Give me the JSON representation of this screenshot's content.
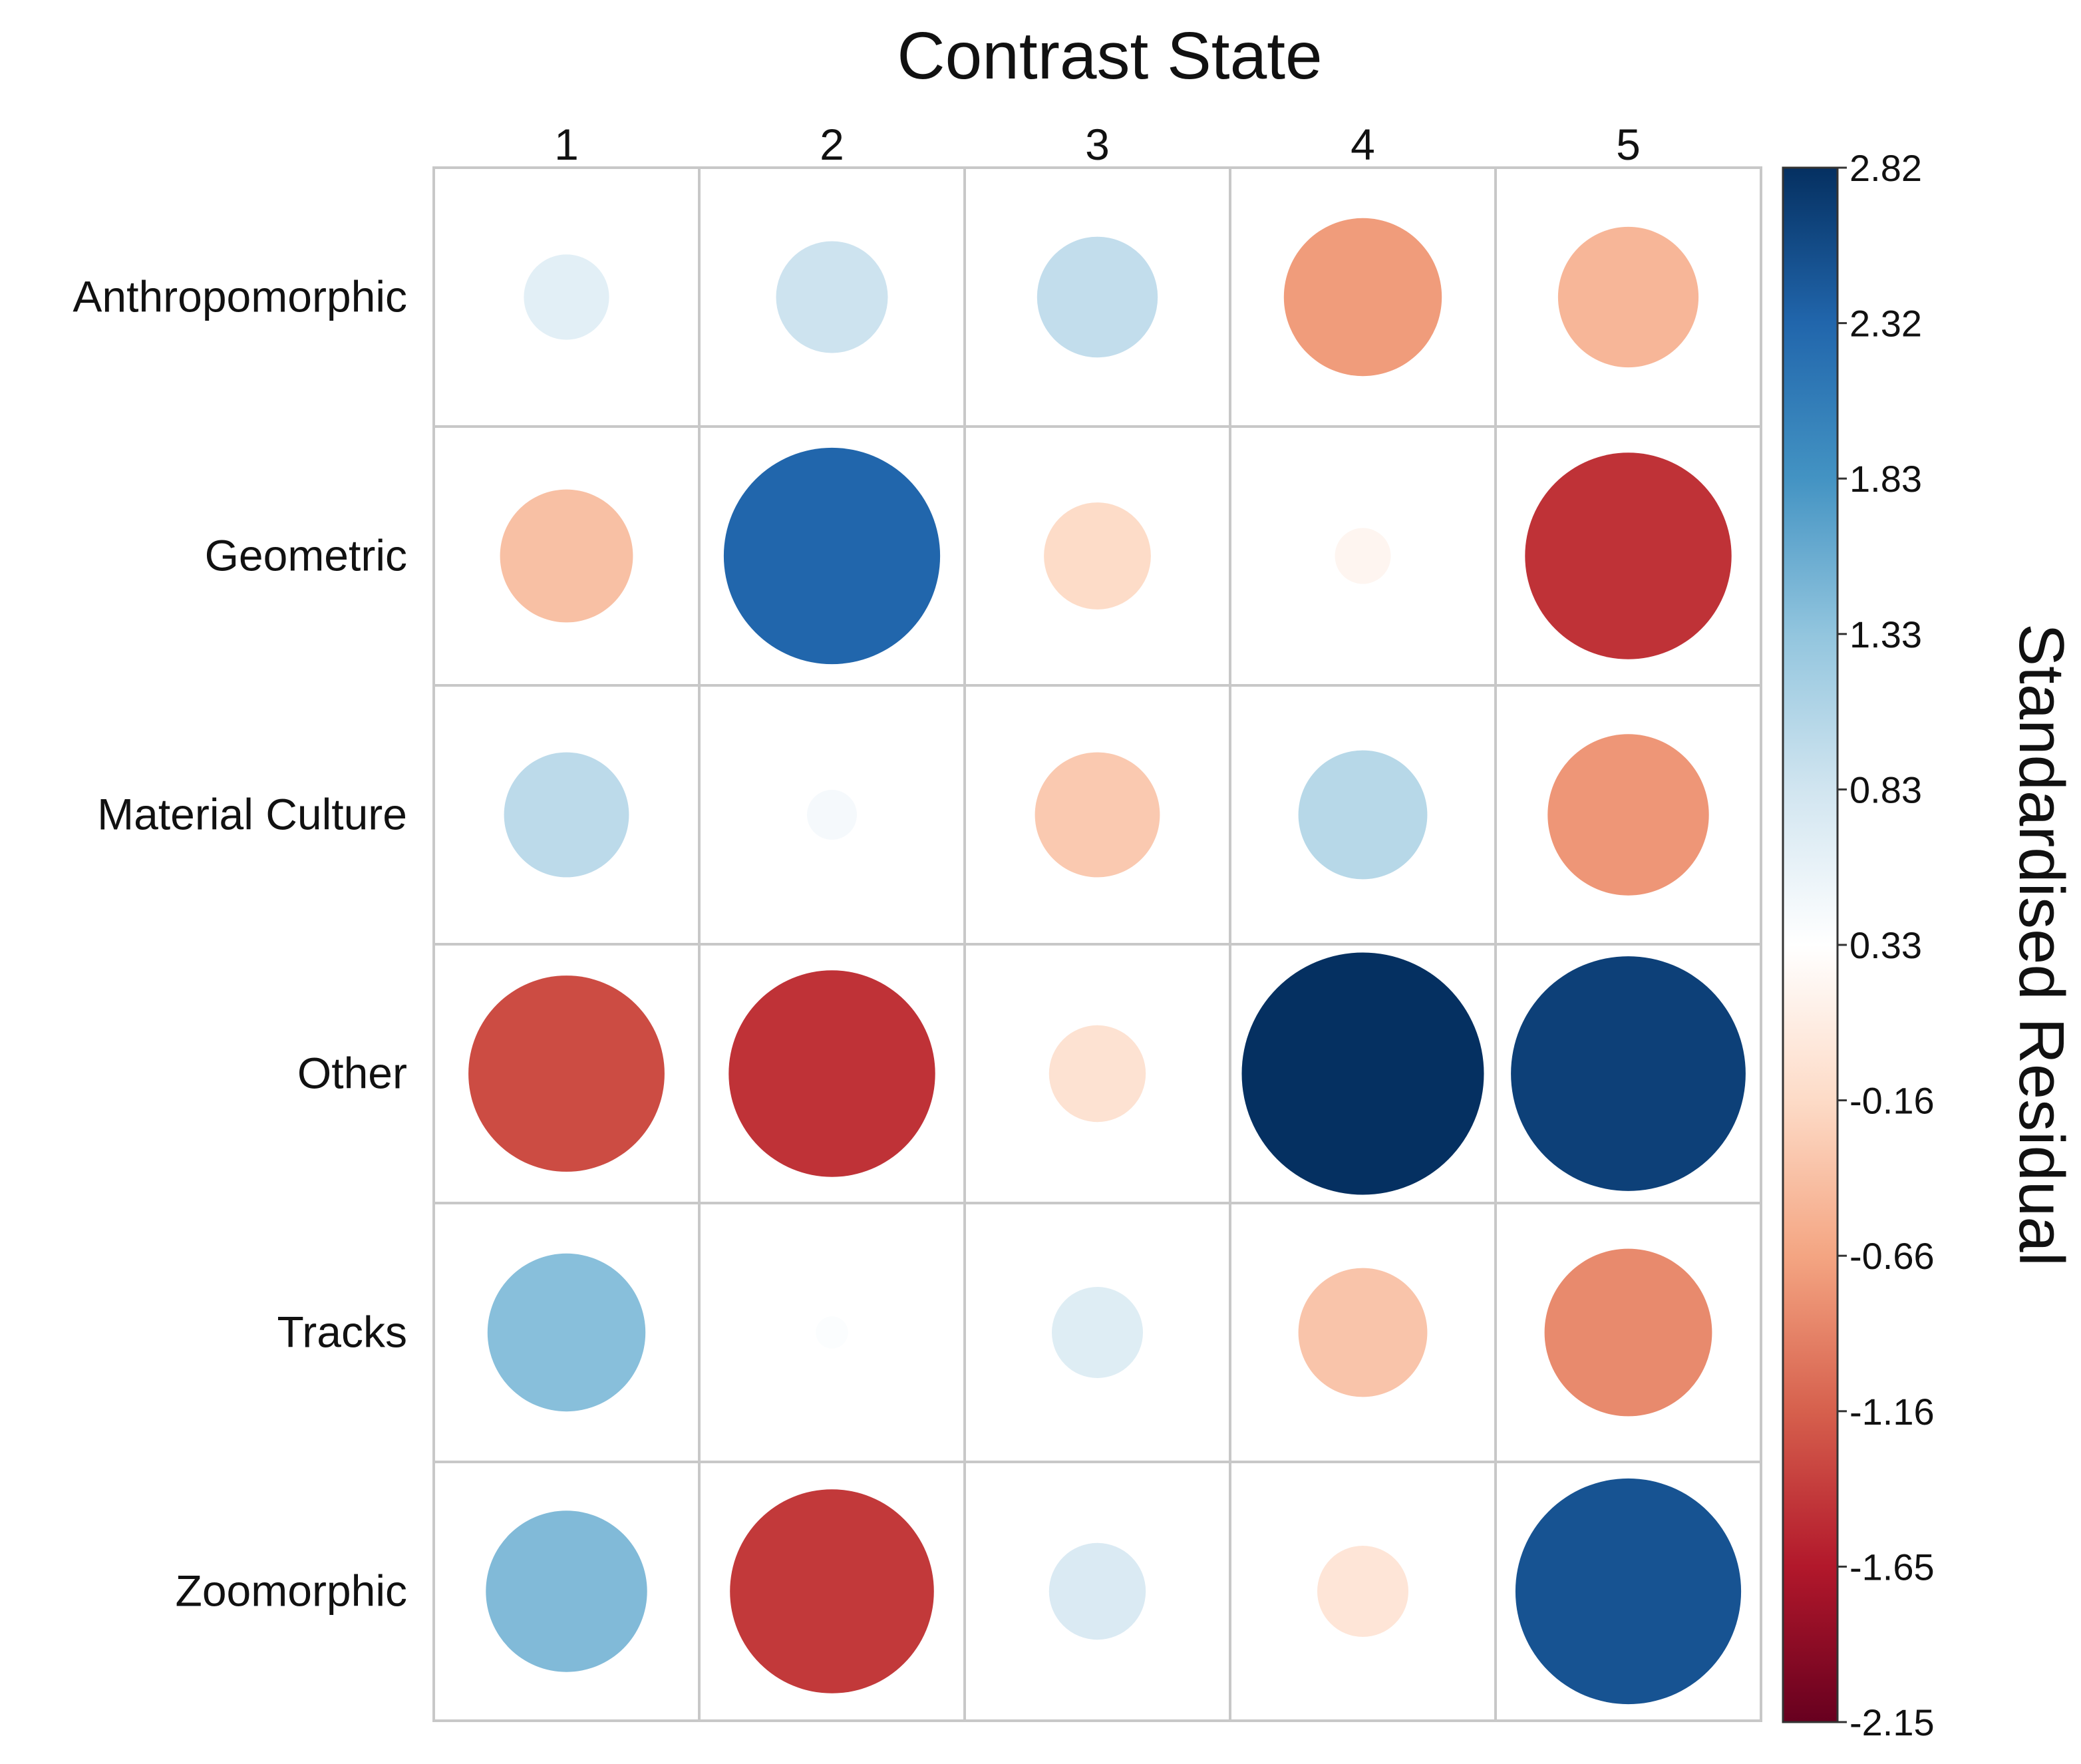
{
  "chart_data": {
    "type": "heatmap",
    "subtype": "correlation-circle-plot",
    "title": "Contrast State",
    "xlabel": "Contrast State",
    "ylabel": "",
    "columns": [
      "1",
      "2",
      "3",
      "4",
      "5"
    ],
    "rows": [
      "Anthropomorphic",
      "Geometric",
      "Material Culture",
      "Other",
      "Tracks",
      "Zoomorphic"
    ],
    "values": [
      [
        0.35,
        0.6,
        0.7,
        -1.2,
        -0.95
      ],
      [
        -0.85,
        2.25,
        -0.55,
        -0.15,
        -2.05
      ],
      [
        0.75,
        0.12,
        -0.75,
        0.8,
        -1.25
      ],
      [
        -1.85,
        -2.05,
        -0.45,
        2.82,
        2.65
      ],
      [
        1.2,
        0.05,
        0.4,
        -0.8,
        -1.35
      ],
      [
        1.25,
        -2.0,
        0.45,
        -0.4,
        2.45
      ]
    ],
    "colorbar": {
      "label": "Standardised Residual",
      "range": [
        -2.15,
        2.82
      ],
      "ticks": [
        "2.82",
        "2.32",
        "1.83",
        "1.33",
        "0.83",
        "0.33",
        "-0.16",
        "-0.66",
        "-1.16",
        "-1.65",
        "-2.15"
      ]
    },
    "colors": {
      "negative_max": "#B2182B",
      "neutral": "#FFFFFF",
      "positive_max": "#053061",
      "grid": "#C8C8C8"
    }
  }
}
